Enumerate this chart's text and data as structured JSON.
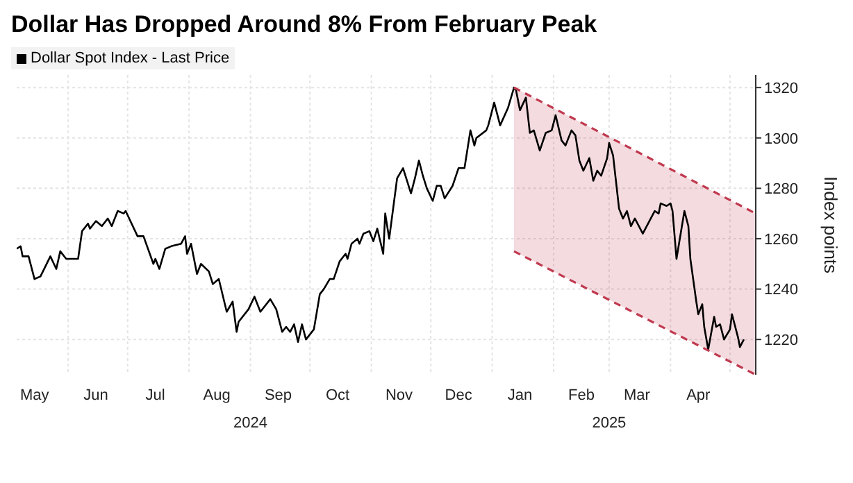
{
  "chart_data": {
    "type": "line",
    "title": "Dollar Has Dropped Around 8% From February Peak",
    "ylabel": "Index points",
    "legend": "top left",
    "grid": true,
    "line_style": "solid",
    "marker": "none",
    "xlim": [
      "2024-05-06",
      "2025-05-14"
    ],
    "xticks": [
      {
        "value": "2024-05-15",
        "label": "May"
      },
      {
        "value": "2024-06-01",
        "label": null
      },
      {
        "value": "2024-06-15",
        "label": "Jun"
      },
      {
        "value": "2024-07-01",
        "label": null
      },
      {
        "value": "2024-07-15",
        "label": "Jul"
      },
      {
        "value": "2024-08-01",
        "label": null
      },
      {
        "value": "2024-08-15",
        "label": "Aug"
      },
      {
        "value": "2024-09-01",
        "label": null
      },
      {
        "value": "2024-09-15",
        "label": "Sep"
      },
      {
        "value": "2024-10-01",
        "label": null
      },
      {
        "value": "2024-10-15",
        "label": "Oct"
      },
      {
        "value": "2024-11-01",
        "label": null
      },
      {
        "value": "2024-11-15",
        "label": "Nov"
      },
      {
        "value": "2024-12-01",
        "label": null
      },
      {
        "value": "2024-12-15",
        "label": "Dec"
      },
      {
        "value": "2025-01-01",
        "label": null
      },
      {
        "value": "2025-01-15",
        "label": "Jan"
      },
      {
        "value": "2025-02-01",
        "label": null
      },
      {
        "value": "2025-02-15",
        "label": "Feb"
      },
      {
        "value": "2025-03-01",
        "label": null
      },
      {
        "value": "2025-03-15",
        "label": "Mar"
      },
      {
        "value": "2025-04-01",
        "label": null
      },
      {
        "value": "2025-04-15",
        "label": "Apr"
      },
      {
        "value": "2025-05-01",
        "label": null
      }
    ],
    "x2lim": [
      "2024-05-06",
      "2025-05-14"
    ],
    "x2ticks": [
      {
        "value": "2024-09-01",
        "label": "2024"
      },
      {
        "value": "2025-03-01",
        "label": "2025"
      }
    ],
    "ylim": [
      1206,
      1325
    ],
    "yticks": [
      1220,
      1240,
      1260,
      1280,
      1300,
      1320
    ],
    "series": [
      {
        "name": "Dollar Spot Index - Last Price",
        "color": "#000000",
        "x": [
          "2024-05-06",
          "2024-05-08",
          "2024-05-09",
          "2024-05-12",
          "2024-05-15",
          "2024-05-18",
          "2024-05-23",
          "2024-05-26",
          "2024-05-28",
          "2024-05-31",
          "2024-06-06",
          "2024-06-08",
          "2024-06-11",
          "2024-06-12",
          "2024-06-15",
          "2024-06-18",
          "2024-06-21",
          "2024-06-23",
          "2024-06-26",
          "2024-06-29",
          "2024-06-30",
          "2024-07-06",
          "2024-07-09",
          "2024-07-14",
          "2024-07-15",
          "2024-07-17",
          "2024-07-20",
          "2024-07-23",
          "2024-07-28",
          "2024-07-30",
          "2024-07-31",
          "2024-08-02",
          "2024-08-05",
          "2024-08-07",
          "2024-08-11",
          "2024-08-13",
          "2024-08-16",
          "2024-08-20",
          "2024-08-23",
          "2024-08-25",
          "2024-08-26",
          "2024-08-31",
          "2024-09-03",
          "2024-09-06",
          "2024-09-11",
          "2024-09-14",
          "2024-09-17",
          "2024-09-19",
          "2024-09-21",
          "2024-09-23",
          "2024-09-25",
          "2024-09-27",
          "2024-09-29",
          "2024-10-03",
          "2024-10-06",
          "2024-10-08",
          "2024-10-11",
          "2024-10-13",
          "2024-10-16",
          "2024-10-19",
          "2024-10-20",
          "2024-10-22",
          "2024-10-25",
          "2024-10-26",
          "2024-10-28",
          "2024-10-31",
          "2024-11-02",
          "2024-11-04",
          "2024-11-07",
          "2024-11-08",
          "2024-11-10",
          "2024-11-14",
          "2024-11-17",
          "2024-11-21",
          "2024-11-23",
          "2024-11-25",
          "2024-11-27",
          "2024-11-29",
          "2024-12-02",
          "2024-12-04",
          "2024-12-06",
          "2024-12-08",
          "2024-12-12",
          "2024-12-15",
          "2024-12-18",
          "2024-12-21",
          "2024-12-23",
          "2024-12-24",
          "2024-12-29",
          "2024-12-30",
          "2025-01-02",
          "2025-01-05",
          "2025-01-09",
          "2025-01-12",
          "2025-01-13",
          "2025-01-15",
          "2025-01-18",
          "2025-01-20",
          "2025-01-22",
          "2025-01-25",
          "2025-01-28",
          "2025-01-31",
          "2025-02-02",
          "2025-02-05",
          "2025-02-07",
          "2025-02-10",
          "2025-02-12",
          "2025-02-14",
          "2025-02-16",
          "2025-02-19",
          "2025-02-21",
          "2025-02-23",
          "2025-02-25",
          "2025-02-28",
          "2025-03-01",
          "2025-03-03",
          "2025-03-06",
          "2025-03-08",
          "2025-03-10",
          "2025-03-12",
          "2025-03-14",
          "2025-03-18",
          "2025-03-22",
          "2025-03-24",
          "2025-03-26",
          "2025-03-27",
          "2025-03-30",
          "2025-04-01",
          "2025-04-02",
          "2025-04-04",
          "2025-04-08",
          "2025-04-10",
          "2025-04-11",
          "2025-04-14",
          "2025-04-15",
          "2025-04-17",
          "2025-04-18",
          "2025-04-20",
          "2025-04-23",
          "2025-04-24",
          "2025-04-26",
          "2025-04-28",
          "2025-05-01",
          "2025-05-02",
          "2025-05-05",
          "2025-05-06",
          "2025-05-08"
        ],
        "values": [
          1256,
          1257,
          1253,
          1253,
          1244,
          1245,
          1253,
          1248,
          1255,
          1252,
          1252,
          1263,
          1266,
          1264,
          1267,
          1265,
          1268,
          1265,
          1271,
          1270,
          1271,
          1261,
          1261,
          1250,
          1252,
          1248,
          1256,
          1257,
          1258,
          1261,
          1254,
          1258,
          1246,
          1250,
          1247,
          1242,
          1244,
          1231,
          1235,
          1223,
          1227,
          1232,
          1237,
          1231,
          1236,
          1232,
          1223,
          1225,
          1223,
          1226,
          1219,
          1226,
          1220,
          1224,
          1238,
          1240,
          1244,
          1244,
          1251,
          1254,
          1252,
          1258,
          1260,
          1258,
          1262,
          1263,
          1259,
          1264,
          1254,
          1270,
          1260,
          1284,
          1288,
          1278,
          1284,
          1291,
          1285,
          1280,
          1275,
          1281,
          1281,
          1276,
          1281,
          1288,
          1288,
          1303,
          1297,
          1300,
          1303,
          1305,
          1314,
          1305,
          1312,
          1320,
          1319,
          1311,
          1316,
          1302,
          1303,
          1295,
          1302,
          1303,
          1309,
          1299,
          1297,
          1303,
          1301,
          1291,
          1287,
          1292,
          1283,
          1287,
          1285,
          1292,
          1298,
          1293,
          1272,
          1268,
          1271,
          1265,
          1268,
          1262,
          1268,
          1271,
          1270,
          1274,
          1273,
          1274,
          1271,
          1252,
          1271,
          1265,
          1252,
          1235,
          1230,
          1234,
          1225,
          1216,
          1229,
          1225,
          1226,
          1220,
          1224,
          1230,
          1221,
          1217,
          1220
        ]
      },
      {
        "type": "line",
        "color": "#c0394f",
        "line_style": "dashed",
        "x": [
          "2025-01-12",
          "2025-05-14"
        ],
        "values": [
          1320,
          1270
        ],
        "lower": [
          1255,
          1206
        ],
        "upper": [
          1320,
          1270
        ]
      },
      {
        "type": "line",
        "color": "#c0394f",
        "line_style": "dashed",
        "x": [
          "2025-01-12",
          "2025-05-14"
        ],
        "values": [
          1255,
          1206
        ]
      }
    ]
  }
}
